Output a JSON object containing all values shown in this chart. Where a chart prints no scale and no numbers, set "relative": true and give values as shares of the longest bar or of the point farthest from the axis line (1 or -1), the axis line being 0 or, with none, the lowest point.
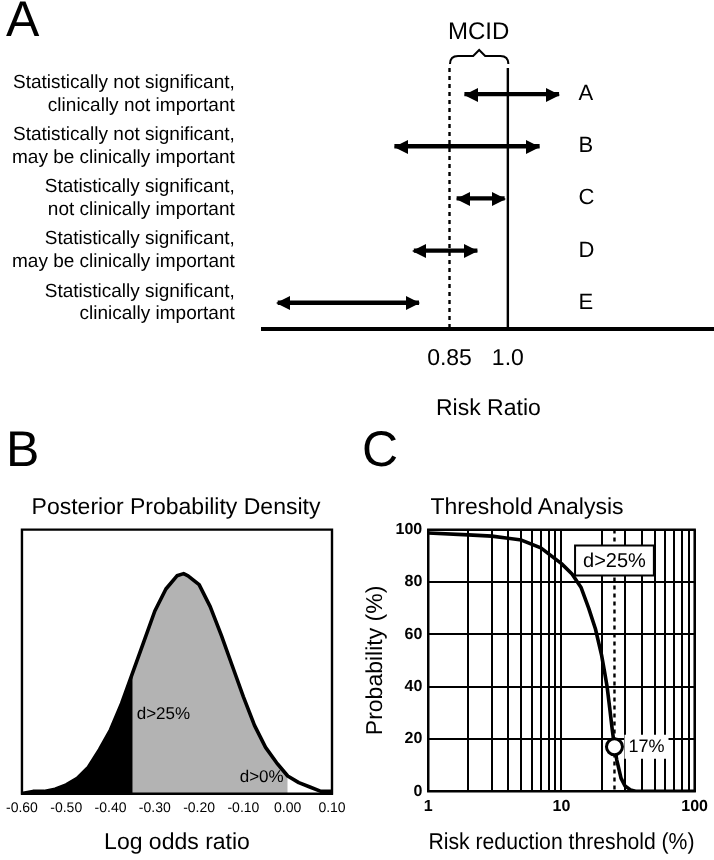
{
  "chart_data": [
    {
      "type": "bar",
      "orientation": "horizontal",
      "xlabel": "Risk Ratio",
      "annotations": [
        "A",
        "MCID"
      ],
      "categories": [
        "Statistically not significant, clinically not important",
        "Statistically not significant, may be clinically important",
        "Statistically significant, not clinically important",
        "Statistically significant, may be clinically important",
        "Statistically significant, clinically important"
      ],
      "base": [
        0.89,
        0.71,
        0.87,
        0.76,
        0.41
      ],
      "values": [
        0.24,
        0.37,
        0.12,
        0.16,
        0.36
      ],
      "value_labels": [
        "A",
        "B",
        "C",
        "D",
        "E"
      ],
      "color": "#000000",
      "xlim": [
        0.37,
        1.53
      ],
      "xticks": [
        0.85,
        {
          "value": 1.0,
          "label": "1.0"
        }
      ],
      "ref_lines": [
        {
          "axis": "x",
          "value": 0.85,
          "line_style": "dotted",
          "color": "#000000"
        },
        {
          "axis": "x",
          "value": 1.0,
          "line_style": "solid",
          "color": "#000000"
        }
      ]
    },
    {
      "type": "line",
      "title": "Posterior Probability Density",
      "xlabel": "Log odds ratio",
      "annotations": [
        "B"
      ],
      "relative": true,
      "x": [
        -0.6,
        -0.575,
        -0.55,
        -0.525,
        -0.5,
        -0.475,
        -0.45,
        -0.425,
        -0.4,
        -0.375,
        -0.35,
        -0.325,
        -0.3,
        -0.275,
        -0.25,
        -0.235,
        -0.225,
        -0.2,
        -0.175,
        -0.15,
        -0.125,
        -0.1,
        -0.075,
        -0.05,
        -0.025,
        0.0,
        0.025,
        0.05,
        0.075,
        0.1
      ],
      "series": [
        {
          "type": "area",
          "name": "d>0%",
          "color": "#b3b3b3",
          "x": [
            -0.6,
            -0.575,
            -0.55,
            -0.525,
            -0.5,
            -0.475,
            -0.45,
            -0.425,
            -0.4,
            -0.375,
            -0.35,
            -0.325,
            -0.3,
            -0.275,
            -0.25,
            -0.235,
            -0.225,
            -0.2,
            -0.175,
            -0.15,
            -0.125,
            -0.1,
            -0.075,
            -0.05,
            -0.025,
            0.0
          ],
          "values": [
            0.0,
            0.01,
            0.01,
            0.02,
            0.04,
            0.07,
            0.12,
            0.2,
            0.29,
            0.41,
            0.55,
            0.69,
            0.83,
            0.93,
            0.99,
            1.0,
            0.99,
            0.95,
            0.85,
            0.72,
            0.58,
            0.44,
            0.31,
            0.21,
            0.14,
            0.08
          ]
        },
        {
          "type": "area",
          "name": "d>25%",
          "color": "#000000",
          "x": [
            -0.6,
            -0.575,
            -0.55,
            -0.525,
            -0.5,
            -0.475,
            -0.45,
            -0.425,
            -0.4,
            -0.375,
            -0.35
          ],
          "values": [
            0.0,
            0.01,
            0.01,
            0.02,
            0.04,
            0.07,
            0.12,
            0.2,
            0.29,
            0.41,
            0.55
          ]
        },
        {
          "color": "#000000",
          "values": [
            0.0,
            0.01,
            0.01,
            0.02,
            0.04,
            0.07,
            0.12,
            0.2,
            0.29,
            0.41,
            0.55,
            0.69,
            0.83,
            0.93,
            0.99,
            1.0,
            0.99,
            0.95,
            0.85,
            0.72,
            0.58,
            0.44,
            0.31,
            0.21,
            0.14,
            0.08,
            0.05,
            0.03,
            0.01,
            0.01
          ]
        }
      ],
      "xlim": [
        -0.6,
        0.1
      ],
      "xticks": [
        {
          "value": -0.6,
          "label": "-0.60"
        },
        {
          "value": -0.5,
          "label": "-0.50"
        },
        {
          "value": -0.4,
          "label": "-0.40"
        },
        {
          "value": -0.3,
          "label": "-0.30"
        },
        {
          "value": -0.2,
          "label": "-0.20"
        },
        {
          "value": -0.1,
          "label": "-0.10"
        },
        {
          "value": 0.0,
          "label": "0.00"
        },
        {
          "value": 0.1,
          "label": "0.10"
        }
      ]
    },
    {
      "type": "line",
      "title": "Threshold Analysis",
      "xlabel": "Risk reduction threshold (%)",
      "ylabel": "Probability (%)",
      "annotations": [
        "C"
      ],
      "log": "x",
      "grid": true,
      "series": [
        {
          "color": "#000000",
          "x": [
            1,
            2,
            3,
            5,
            7,
            10,
            12,
            14,
            16,
            18,
            20,
            21,
            22,
            23,
            24,
            25,
            26,
            28,
            30,
            33,
            36,
            100
          ],
          "values": [
            98.7,
            98,
            97.5,
            96,
            93,
            87,
            83,
            78,
            70,
            62,
            52,
            46,
            40,
            32,
            24,
            17,
            12,
            5,
            2,
            0.5,
            0,
            0
          ]
        },
        {
          "type": "scatter",
          "marker": "circle",
          "color": "#000000",
          "x": [
            25
          ],
          "values": [
            17
          ],
          "value_labels": [
            "17%"
          ]
        }
      ],
      "xlim": [
        1,
        100
      ],
      "xticks": [
        1,
        {
          "value": 2,
          "label": null
        },
        {
          "value": 3,
          "label": null
        },
        {
          "value": 4,
          "label": null
        },
        {
          "value": 5,
          "label": null
        },
        {
          "value": 6,
          "label": null
        },
        {
          "value": 7,
          "label": null
        },
        {
          "value": 8,
          "label": null
        },
        {
          "value": 9,
          "label": null
        },
        10,
        {
          "value": 20,
          "label": null
        },
        {
          "value": 30,
          "label": null
        },
        {
          "value": 40,
          "label": null
        },
        {
          "value": 50,
          "label": null
        },
        {
          "value": 60,
          "label": null
        },
        {
          "value": 70,
          "label": null
        },
        {
          "value": 80,
          "label": null
        },
        {
          "value": 90,
          "label": null
        },
        100
      ],
      "ylim": [
        0,
        100
      ],
      "yticks": [
        0,
        20,
        40,
        60,
        80,
        100
      ],
      "ref_lines": [
        {
          "axis": "x",
          "value": 25,
          "label": "d>25%",
          "line_style": "dotted",
          "color": "#000000"
        }
      ]
    }
  ]
}
